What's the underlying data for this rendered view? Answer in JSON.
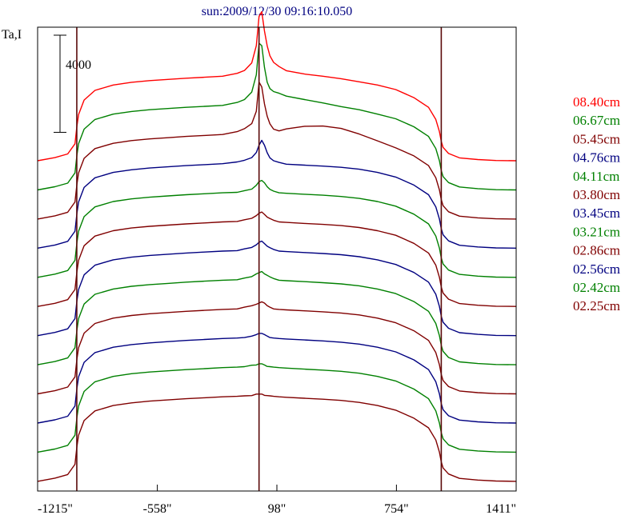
{
  "chart_data": {
    "type": "line",
    "title": "sun:2009/12/30 09:16:10.050",
    "ylabel": "Ta,I",
    "scale_bar_label": "4000",
    "scale_bar_value": 4000,
    "x_tick_labels": [
      "-1215\"",
      "-558\"",
      "98\"",
      "754\"",
      "1411\""
    ],
    "x_tick_values": [
      -1215,
      -558,
      98,
      754,
      1411
    ],
    "xlim": [
      -1215,
      1411
    ],
    "vertical_markers": [
      -1000,
      0,
      1000
    ],
    "grid": false,
    "legend_position": "right",
    "x": [
      -1215,
      -1120,
      -1050,
      -1010,
      -1000,
      -990,
      -960,
      -900,
      -800,
      -700,
      -600,
      -500,
      -400,
      -300,
      -200,
      -120,
      -80,
      -40,
      -15,
      0,
      15,
      30,
      45,
      60,
      80,
      110,
      150,
      250,
      350,
      450,
      550,
      650,
      750,
      850,
      930,
      970,
      990,
      1000,
      1010,
      1040,
      1100,
      1200,
      1300,
      1411
    ],
    "baseline_shape": [
      0,
      130,
      280,
      700,
      1400,
      1900,
      2500,
      2900,
      3120,
      3230,
      3300,
      3350,
      3400,
      3440,
      3480,
      3500,
      3520,
      3530,
      3540,
      3540,
      3540,
      3540,
      3530,
      3520,
      3500,
      3480,
      3460,
      3420,
      3380,
      3330,
      3250,
      3120,
      2930,
      2600,
      2200,
      1700,
      1200,
      800,
      550,
      300,
      120,
      50,
      10,
      0
    ],
    "series": [
      {
        "name": "08.40cm",
        "color": "#ff0000",
        "offset": 13200,
        "bump_amplitude": 3200,
        "limb_ramp": 0,
        "bump": [
          0,
          0,
          0,
          0,
          0,
          0,
          0,
          0,
          0,
          0,
          0,
          0,
          0,
          0,
          0,
          100,
          200,
          500,
          1200,
          2400,
          2600,
          1800,
          1200,
          800,
          550,
          400,
          250,
          150,
          100,
          50,
          0,
          0,
          0,
          0,
          0,
          0,
          0,
          0,
          0,
          0,
          0,
          0,
          0,
          0
        ]
      },
      {
        "name": "06.67cm",
        "color": "#008000",
        "offset": 12000,
        "bump_amplitude": 2900,
        "limb_ramp": 0,
        "bump": [
          0,
          0,
          0,
          0,
          0,
          0,
          0,
          0,
          0,
          0,
          0,
          0,
          0,
          0,
          0,
          100,
          200,
          500,
          1200,
          2500,
          2400,
          1500,
          900,
          650,
          550,
          500,
          400,
          300,
          200,
          100,
          50,
          0,
          0,
          0,
          0,
          0,
          0,
          0,
          0,
          0,
          0,
          0,
          0,
          0
        ]
      },
      {
        "name": "05.45cm",
        "color": "#800000",
        "offset": 10800,
        "bump_amplitude": 2400,
        "limb_ramp": 0,
        "bump": [
          0,
          0,
          0,
          0,
          0,
          0,
          0,
          0,
          0,
          0,
          0,
          0,
          0,
          0,
          0,
          100,
          200,
          400,
          900,
          2100,
          1900,
          1200,
          700,
          400,
          200,
          150,
          250,
          400,
          450,
          400,
          250,
          100,
          0,
          0,
          0,
          0,
          0,
          0,
          0,
          0,
          0,
          0,
          0,
          0
        ]
      },
      {
        "name": "04.76cm",
        "color": "#000080",
        "offset": 9600,
        "bump_amplitude": 900,
        "limb_ramp": 0,
        "bump": [
          0,
          0,
          0,
          0,
          0,
          0,
          0,
          0,
          0,
          0,
          0,
          0,
          0,
          0,
          0,
          50,
          100,
          200,
          400,
          700,
          900,
          700,
          400,
          200,
          100,
          50,
          0,
          0,
          0,
          0,
          0,
          0,
          0,
          0,
          0,
          0,
          0,
          0,
          0,
          0,
          0,
          0,
          0,
          0
        ]
      },
      {
        "name": "04.11cm",
        "color": "#008000",
        "offset": 8400,
        "bump_amplitude": 450,
        "limb_ramp": 0,
        "bump": [
          0,
          0,
          0,
          0,
          0,
          0,
          0,
          0,
          0,
          0,
          0,
          0,
          0,
          0,
          0,
          0,
          50,
          100,
          250,
          400,
          450,
          350,
          200,
          100,
          50,
          0,
          0,
          0,
          0,
          0,
          0,
          0,
          0,
          0,
          0,
          0,
          0,
          0,
          0,
          0,
          0,
          0,
          0,
          0
        ]
      },
      {
        "name": "03.80cm",
        "color": "#800000",
        "offset": 7200,
        "bump_amplitude": 350,
        "limb_ramp": 0,
        "bump": [
          0,
          0,
          0,
          0,
          0,
          0,
          0,
          0,
          0,
          0,
          0,
          0,
          0,
          0,
          0,
          0,
          50,
          100,
          200,
          300,
          350,
          250,
          150,
          100,
          50,
          0,
          0,
          0,
          0,
          0,
          0,
          0,
          0,
          0,
          0,
          0,
          0,
          0,
          0,
          0,
          0,
          0,
          0,
          0
        ]
      },
      {
        "name": "03.45cm",
        "color": "#000080",
        "offset": 6000,
        "bump_amplitude": 350,
        "limb_ramp": 0,
        "bump": [
          0,
          0,
          0,
          0,
          0,
          0,
          0,
          0,
          0,
          0,
          0,
          0,
          0,
          0,
          0,
          0,
          50,
          100,
          200,
          300,
          350,
          250,
          150,
          100,
          50,
          0,
          0,
          0,
          0,
          0,
          0,
          0,
          0,
          0,
          0,
          0,
          0,
          0,
          0,
          0,
          0,
          0,
          0,
          0
        ]
      },
      {
        "name": "03.21cm",
        "color": "#008000",
        "offset": 4800,
        "bump_amplitude": 300,
        "limb_ramp": 0,
        "bump": [
          0,
          0,
          0,
          0,
          0,
          0,
          0,
          0,
          0,
          0,
          0,
          0,
          0,
          0,
          0,
          0,
          50,
          100,
          200,
          250,
          300,
          200,
          150,
          100,
          50,
          0,
          0,
          0,
          0,
          0,
          0,
          0,
          0,
          0,
          0,
          0,
          0,
          0,
          0,
          0,
          0,
          0,
          0,
          0
        ]
      },
      {
        "name": "02.86cm",
        "color": "#800000",
        "offset": 3600,
        "bump_amplitude": 250,
        "limb_ramp": 0,
        "bump": [
          0,
          0,
          0,
          0,
          0,
          0,
          0,
          0,
          0,
          0,
          0,
          0,
          0,
          0,
          0,
          0,
          50,
          100,
          150,
          200,
          250,
          200,
          100,
          50,
          0,
          0,
          0,
          0,
          0,
          0,
          0,
          0,
          0,
          0,
          0,
          0,
          0,
          0,
          0,
          0,
          0,
          0,
          0,
          0
        ]
      },
      {
        "name": "02.56cm",
        "color": "#000080",
        "offset": 2400,
        "bump_amplitude": 150,
        "limb_ramp": 0,
        "bump": [
          0,
          0,
          0,
          0,
          0,
          0,
          0,
          0,
          0,
          0,
          0,
          0,
          0,
          0,
          0,
          0,
          0,
          50,
          100,
          150,
          150,
          100,
          50,
          0,
          0,
          0,
          0,
          0,
          0,
          0,
          0,
          0,
          0,
          0,
          0,
          0,
          0,
          0,
          0,
          0,
          0,
          0,
          0,
          0
        ]
      },
      {
        "name": "02.42cm",
        "color": "#008000",
        "offset": 1200,
        "bump_amplitude": 100,
        "limb_ramp": 0,
        "bump": [
          0,
          0,
          0,
          0,
          0,
          0,
          0,
          0,
          0,
          0,
          0,
          0,
          0,
          0,
          0,
          0,
          0,
          50,
          50,
          100,
          100,
          50,
          0,
          0,
          0,
          0,
          0,
          0,
          0,
          0,
          0,
          0,
          0,
          0,
          0,
          0,
          0,
          0,
          0,
          0,
          0,
          0,
          0,
          0
        ]
      },
      {
        "name": "02.25cm",
        "color": "#800000",
        "offset": 0,
        "bump_amplitude": 50,
        "limb_ramp": 0,
        "bump": [
          0,
          0,
          0,
          0,
          0,
          0,
          0,
          0,
          0,
          0,
          0,
          0,
          0,
          0,
          0,
          0,
          0,
          0,
          50,
          50,
          50,
          0,
          0,
          0,
          0,
          0,
          0,
          0,
          0,
          0,
          0,
          0,
          0,
          0,
          0,
          0,
          0,
          0,
          0,
          0,
          0,
          0,
          0,
          0
        ]
      }
    ],
    "ylim": [
      -400,
      18700
    ]
  }
}
